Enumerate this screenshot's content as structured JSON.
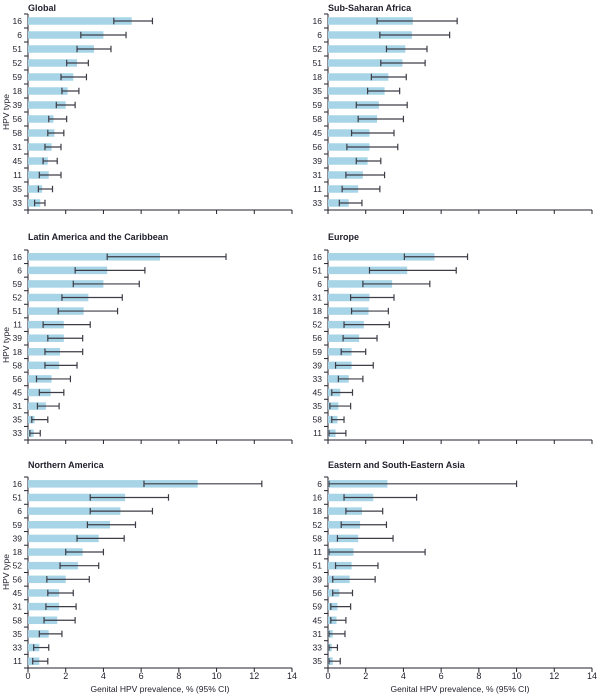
{
  "figure": {
    "y_axis_label": "HPV type",
    "x_axis_label": "Genital HPV prevalence, % (95% CI)",
    "colors": {
      "bar_fill": "#a7d5e7",
      "error_bar": "#3d3d47",
      "text": "#22222e",
      "axis": "#22222e"
    }
  },
  "chart_data": [
    {
      "type": "bar",
      "orientation": "horizontal",
      "title": "Global",
      "ylabel": "HPV type",
      "xlabel": "",
      "xlim": [
        0,
        14
      ],
      "x_ticks": [
        0,
        2,
        4,
        6,
        8,
        10,
        12,
        14
      ],
      "x_tick_labels_visible": false,
      "grid": false,
      "categories": [
        "16",
        "6",
        "51",
        "52",
        "59",
        "18",
        "39",
        "56",
        "58",
        "31",
        "45",
        "11",
        "35",
        "33"
      ],
      "values": [
        5.5,
        4.0,
        3.5,
        2.6,
        2.4,
        2.1,
        2.0,
        1.35,
        1.4,
        1.25,
        1.05,
        1.1,
        0.75,
        0.65
      ],
      "ci_low": [
        4.55,
        2.8,
        2.6,
        2.05,
        1.75,
        1.8,
        1.5,
        1.1,
        1.05,
        0.9,
        0.8,
        0.6,
        0.55,
        0.35
      ],
      "ci_high": [
        6.6,
        5.2,
        4.4,
        3.2,
        3.1,
        2.7,
        2.5,
        2.05,
        1.9,
        1.75,
        1.55,
        1.75,
        1.3,
        0.9
      ]
    },
    {
      "type": "bar",
      "orientation": "horizontal",
      "title": "Sub-Saharan Africa",
      "ylabel": "",
      "xlabel": "",
      "xlim": [
        0,
        14
      ],
      "x_ticks": [
        0,
        2,
        4,
        6,
        8,
        10,
        12,
        14
      ],
      "x_tick_labels_visible": false,
      "grid": false,
      "categories": [
        "16",
        "6",
        "52",
        "51",
        "18",
        "35",
        "59",
        "58",
        "45",
        "56",
        "39",
        "31",
        "11",
        "33"
      ],
      "values": [
        4.5,
        4.45,
        4.1,
        3.95,
        3.2,
        3.0,
        2.7,
        2.6,
        2.2,
        2.2,
        2.1,
        1.85,
        1.6,
        1.1
      ],
      "ci_low": [
        2.6,
        2.75,
        3.1,
        2.8,
        2.3,
        2.1,
        1.5,
        1.6,
        1.25,
        1.0,
        1.5,
        0.95,
        0.75,
        0.6
      ],
      "ci_high": [
        6.85,
        6.45,
        5.25,
        5.15,
        4.15,
        3.8,
        4.2,
        4.0,
        3.5,
        3.7,
        2.8,
        3.0,
        2.75,
        1.8
      ]
    },
    {
      "type": "bar",
      "orientation": "horizontal",
      "title": "Latin America and the Caribbean",
      "ylabel": "HPV type",
      "xlabel": "",
      "xlim": [
        0,
        14
      ],
      "x_ticks": [
        0,
        2,
        4,
        6,
        8,
        10,
        12,
        14
      ],
      "x_tick_labels_visible": false,
      "grid": false,
      "categories": [
        "16",
        "6",
        "59",
        "52",
        "51",
        "11",
        "39",
        "18",
        "58",
        "56",
        "45",
        "31",
        "35",
        "33"
      ],
      "values": [
        7.0,
        4.2,
        4.0,
        3.2,
        2.95,
        1.9,
        1.9,
        1.7,
        1.65,
        1.25,
        1.2,
        0.95,
        0.35,
        0.3
      ],
      "ci_low": [
        4.2,
        2.5,
        2.4,
        1.8,
        1.6,
        0.8,
        1.05,
        0.9,
        0.9,
        0.45,
        0.6,
        0.5,
        0.2,
        0.1
      ],
      "ci_high": [
        10.5,
        6.2,
        5.9,
        5.0,
        4.75,
        3.3,
        2.9,
        2.9,
        2.6,
        2.25,
        1.9,
        1.65,
        1.05,
        0.65
      ]
    },
    {
      "type": "bar",
      "orientation": "horizontal",
      "title": "Europe",
      "ylabel": "",
      "xlabel": "",
      "xlim": [
        0,
        14
      ],
      "x_ticks": [
        0,
        2,
        4,
        6,
        8,
        10,
        12,
        14
      ],
      "x_tick_labels_visible": false,
      "grid": false,
      "categories": [
        "16",
        "51",
        "6",
        "31",
        "18",
        "52",
        "56",
        "59",
        "39",
        "33",
        "45",
        "35",
        "58",
        "11"
      ],
      "values": [
        5.65,
        4.2,
        3.4,
        2.2,
        2.15,
        1.9,
        1.65,
        1.25,
        1.25,
        1.1,
        0.65,
        0.55,
        0.5,
        0.4
      ],
      "ci_low": [
        4.05,
        2.2,
        1.85,
        1.2,
        1.25,
        0.85,
        0.8,
        0.7,
        0.4,
        0.55,
        0.2,
        0.1,
        0.2,
        0.05
      ],
      "ci_high": [
        7.4,
        6.8,
        5.4,
        3.5,
        3.2,
        3.25,
        2.6,
        2.0,
        2.4,
        1.85,
        1.3,
        1.2,
        0.85,
        0.95
      ]
    },
    {
      "type": "bar",
      "orientation": "horizontal",
      "title": "Northern America",
      "ylabel": "HPV type",
      "xlabel": "Genital HPV prevalence, % (95% CI)",
      "xlim": [
        0,
        14
      ],
      "x_ticks": [
        0,
        2,
        4,
        6,
        8,
        10,
        12,
        14
      ],
      "x_tick_labels_visible": true,
      "grid": false,
      "categories": [
        "16",
        "51",
        "6",
        "59",
        "39",
        "18",
        "52",
        "56",
        "45",
        "31",
        "58",
        "35",
        "33",
        "11"
      ],
      "values": [
        9.0,
        5.15,
        4.9,
        4.35,
        3.75,
        2.9,
        2.65,
        2.0,
        1.65,
        1.65,
        1.55,
        1.1,
        0.6,
        0.6
      ],
      "ci_low": [
        6.15,
        3.3,
        3.3,
        3.15,
        2.6,
        2.0,
        1.7,
        1.0,
        1.05,
        0.95,
        0.85,
        0.6,
        0.3,
        0.25
      ],
      "ci_high": [
        12.4,
        7.45,
        6.6,
        5.7,
        5.1,
        4.0,
        3.75,
        3.25,
        2.4,
        2.55,
        2.5,
        1.8,
        1.1,
        1.05
      ]
    },
    {
      "type": "bar",
      "orientation": "horizontal",
      "title": "Eastern and South-Eastern Asia",
      "ylabel": "",
      "xlabel": "Genital HPV prevalence, % (95% CI)",
      "xlim": [
        0,
        14
      ],
      "x_ticks": [
        0,
        2,
        4,
        6,
        8,
        10,
        12,
        14
      ],
      "x_tick_labels_visible": true,
      "grid": false,
      "categories": [
        "6",
        "16",
        "18",
        "52",
        "58",
        "11",
        "51",
        "39",
        "56",
        "59",
        "45",
        "31",
        "33",
        "35"
      ],
      "values": [
        3.15,
        2.4,
        1.8,
        1.7,
        1.6,
        1.35,
        1.25,
        1.15,
        0.6,
        0.5,
        0.45,
        0.25,
        0.2,
        0.25
      ],
      "ci_low": [
        0.05,
        0.85,
        0.95,
        0.7,
        0.5,
        0.05,
        0.4,
        0.25,
        0.25,
        0.15,
        0.15,
        0.05,
        0.05,
        0.05
      ],
      "ci_high": [
        10.0,
        4.7,
        2.9,
        3.1,
        3.45,
        5.15,
        2.65,
        2.5,
        1.3,
        1.2,
        0.95,
        0.9,
        0.5,
        0.65
      ]
    }
  ]
}
